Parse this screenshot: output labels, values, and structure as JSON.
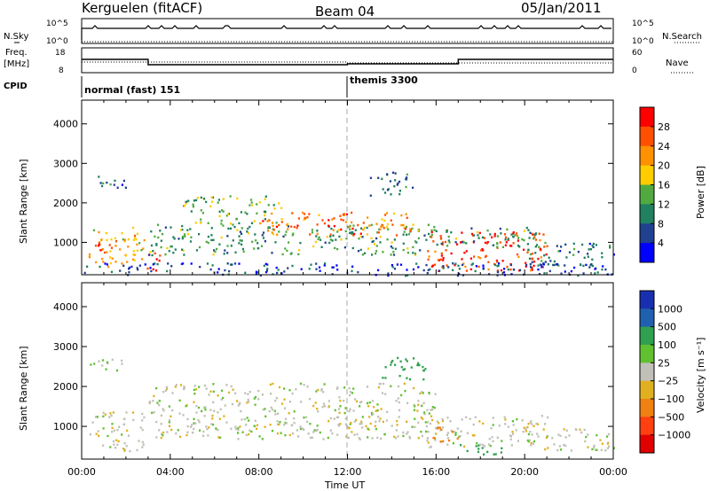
{
  "header": {
    "station": "Kerguelen (fitACF)",
    "beam": "Beam 04",
    "date": "05/Jan/2011"
  },
  "top_panels": {
    "nsky_label": "N.Sky",
    "nsearch_label": "N.Search",
    "count_ticks": [
      "10^5",
      "10^0"
    ],
    "freq_label_line1": "Freq.",
    "freq_label_line2": "[MHz]",
    "freq_ticks": [
      "18",
      "8"
    ],
    "nave_label": "Nave",
    "nave_ticks": [
      "60",
      "0"
    ],
    "cpid_label": "CPID",
    "cpid_modes": [
      {
        "name": "normal (fast) 151",
        "start_hour": 0,
        "end_hour": 12
      },
      {
        "name": "themis 3300",
        "start_hour": 12,
        "end_hour": 24
      }
    ]
  },
  "axes": {
    "xlabel": "Time UT",
    "x_ticks": [
      "00:00",
      "04:00",
      "08:00",
      "12:00",
      "16:00",
      "20:00",
      "00:00"
    ],
    "ylabel": "Slant Range [km]",
    "y_ticks": [
      "4000",
      "3000",
      "2000",
      "1000"
    ],
    "ylim": [
      180,
      4600
    ],
    "xlim_hours": [
      0,
      24
    ]
  },
  "power_colorbar": {
    "label": "Power [dB]",
    "ticks": [
      "28",
      "24",
      "20",
      "16",
      "12",
      "8",
      "4"
    ],
    "colors": [
      "#ff0000",
      "#ff5000",
      "#ff9000",
      "#ffcc00",
      "#50aa40",
      "#208060",
      "#204090",
      "#0000ff"
    ]
  },
  "velocity_colorbar": {
    "label": "Velocity [m s⁻¹]",
    "ticks": [
      "1000",
      "500",
      "100",
      "25",
      "−25",
      "−100",
      "−500",
      "−1000"
    ],
    "colors": [
      "#1830b0",
      "#2060b0",
      "#30a050",
      "#60c030",
      "#c0c0b8",
      "#e0b020",
      "#f08010",
      "#ff4010",
      "#e00000"
    ]
  },
  "chart_data": [
    {
      "type": "heatmap",
      "title": "Power",
      "xlabel": "Time UT",
      "ylabel": "Slant Range [km]",
      "x_range_hours": [
        0,
        24
      ],
      "y_range_km": [
        180,
        4600
      ],
      "value_label": "Power [dB]",
      "regions": [
        {
          "t_start": 0.3,
          "t_end": 2.8,
          "r_min": 400,
          "r_max": 1400,
          "power_db": 20
        },
        {
          "t_start": 0.5,
          "t_end": 1.5,
          "r_min": 800,
          "r_max": 1100,
          "power_db": 26
        },
        {
          "t_start": 0.2,
          "t_end": 2.0,
          "r_min": 2400,
          "r_max": 2700,
          "power_db": 8
        },
        {
          "t_start": 2.8,
          "t_end": 3.5,
          "r_min": 300,
          "r_max": 800,
          "power_db": 28
        },
        {
          "t_start": 3.0,
          "t_end": 16.0,
          "r_min": 700,
          "r_max": 1500,
          "power_db": 12
        },
        {
          "t_start": 8.0,
          "t_end": 15.0,
          "r_min": 1200,
          "r_max": 1800,
          "power_db": 24
        },
        {
          "t_start": 4.5,
          "t_end": 9.0,
          "r_min": 1500,
          "r_max": 2200,
          "power_db": 14
        },
        {
          "t_start": 13.0,
          "t_end": 15.0,
          "r_min": 2200,
          "r_max": 2800,
          "power_db": 8
        },
        {
          "t_start": 15.5,
          "t_end": 21.0,
          "r_min": 300,
          "r_max": 1300,
          "power_db": 28
        },
        {
          "t_start": 16.0,
          "t_end": 21.0,
          "r_min": 900,
          "r_max": 1400,
          "power_db": 12
        },
        {
          "t_start": 20.0,
          "t_end": 24.0,
          "r_min": 400,
          "r_max": 1000,
          "power_db": 8
        },
        {
          "t_start": 0.0,
          "t_end": 24.0,
          "r_min": 180,
          "r_max": 500,
          "power_db": 6
        }
      ]
    },
    {
      "type": "heatmap",
      "title": "Velocity",
      "xlabel": "Time UT",
      "ylabel": "Slant Range [km]",
      "x_range_hours": [
        0,
        24
      ],
      "y_range_km": [
        180,
        4600
      ],
      "value_label": "Velocity [m s⁻¹]",
      "regions": [
        {
          "t_start": 0.3,
          "t_end": 2.8,
          "r_min": 400,
          "r_max": 1400,
          "velocity_ms": 0
        },
        {
          "t_start": 0.2,
          "t_end": 2.0,
          "r_min": 2400,
          "r_max": 2700,
          "velocity_ms": 20
        },
        {
          "t_start": 3.0,
          "t_end": 16.0,
          "r_min": 700,
          "r_max": 2100,
          "velocity_ms": 0
        },
        {
          "t_start": 15.5,
          "t_end": 21.0,
          "r_min": 500,
          "r_max": 1300,
          "velocity_ms": 0
        },
        {
          "t_start": 15.8,
          "t_end": 17.0,
          "r_min": 600,
          "r_max": 1000,
          "velocity_ms": -120
        },
        {
          "t_start": 17.0,
          "t_end": 19.0,
          "r_min": 300,
          "r_max": 600,
          "velocity_ms": 150
        },
        {
          "t_start": 13.5,
          "t_end": 15.5,
          "r_min": 2200,
          "r_max": 2800,
          "velocity_ms": 120
        },
        {
          "t_start": 20.0,
          "t_end": 24.0,
          "r_min": 400,
          "r_max": 1000,
          "velocity_ms": 0
        }
      ]
    }
  ]
}
